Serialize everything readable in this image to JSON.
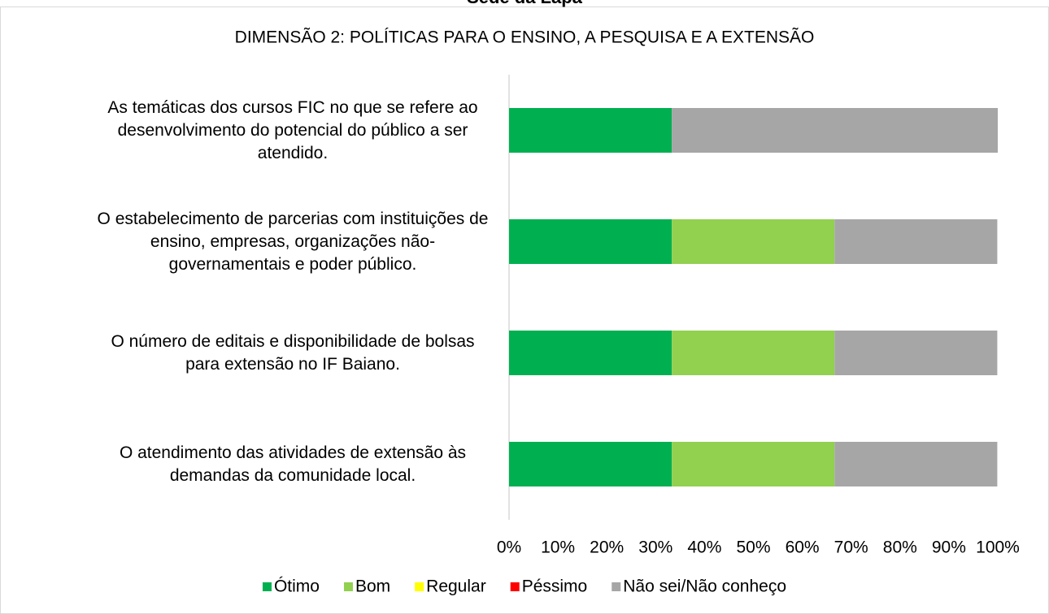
{
  "header": "Sede da Lapa",
  "chart_data": {
    "type": "stacked_barh",
    "title": "DIMENSÃO 2: POLÍTICAS PARA O ENSINO, A PESQUISA E A EXTENSÃO",
    "categories": [
      "As temáticas dos cursos FIC no que se refere ao desenvolvimento do potencial do público a ser atendido.",
      "O estabelecimento de parcerias com instituições de ensino, empresas, organizações não-governamentais e poder público.",
      "O número de editais e disponibilidade de bolsas para extensão no IF Baiano.",
      "O atendimento das atividades de extensão às demandas da comunidade local."
    ],
    "series": [
      {
        "name": "Ótimo",
        "color": "#00b050",
        "values": [
          33.3,
          33.3,
          33.3,
          33.3
        ]
      },
      {
        "name": "Bom",
        "color": "#92d050",
        "values": [
          0,
          33.3,
          33.3,
          33.3
        ]
      },
      {
        "name": "Regular",
        "color": "#ffff00",
        "values": [
          0,
          0,
          0,
          0
        ]
      },
      {
        "name": "Péssimo",
        "color": "#ff0000",
        "values": [
          0,
          0,
          0,
          0
        ]
      },
      {
        "name": "Não sei/Não conheço",
        "color": "#a6a6a6",
        "values": [
          66.7,
          33.3,
          33.3,
          33.3
        ]
      }
    ],
    "xlim": [
      0,
      100
    ],
    "xticks": [
      {
        "value": 0,
        "label": "0%"
      },
      {
        "value": 10,
        "label": "10%"
      },
      {
        "value": 20,
        "label": "20%"
      },
      {
        "value": 30,
        "label": "30%"
      },
      {
        "value": 40,
        "label": "40%"
      },
      {
        "value": 50,
        "label": "50%"
      },
      {
        "value": 60,
        "label": "60%"
      },
      {
        "value": 70,
        "label": "70%"
      },
      {
        "value": 80,
        "label": "80%"
      },
      {
        "value": 90,
        "label": "90%"
      },
      {
        "value": 100,
        "label": "100%"
      }
    ],
    "legend": "bottom"
  }
}
